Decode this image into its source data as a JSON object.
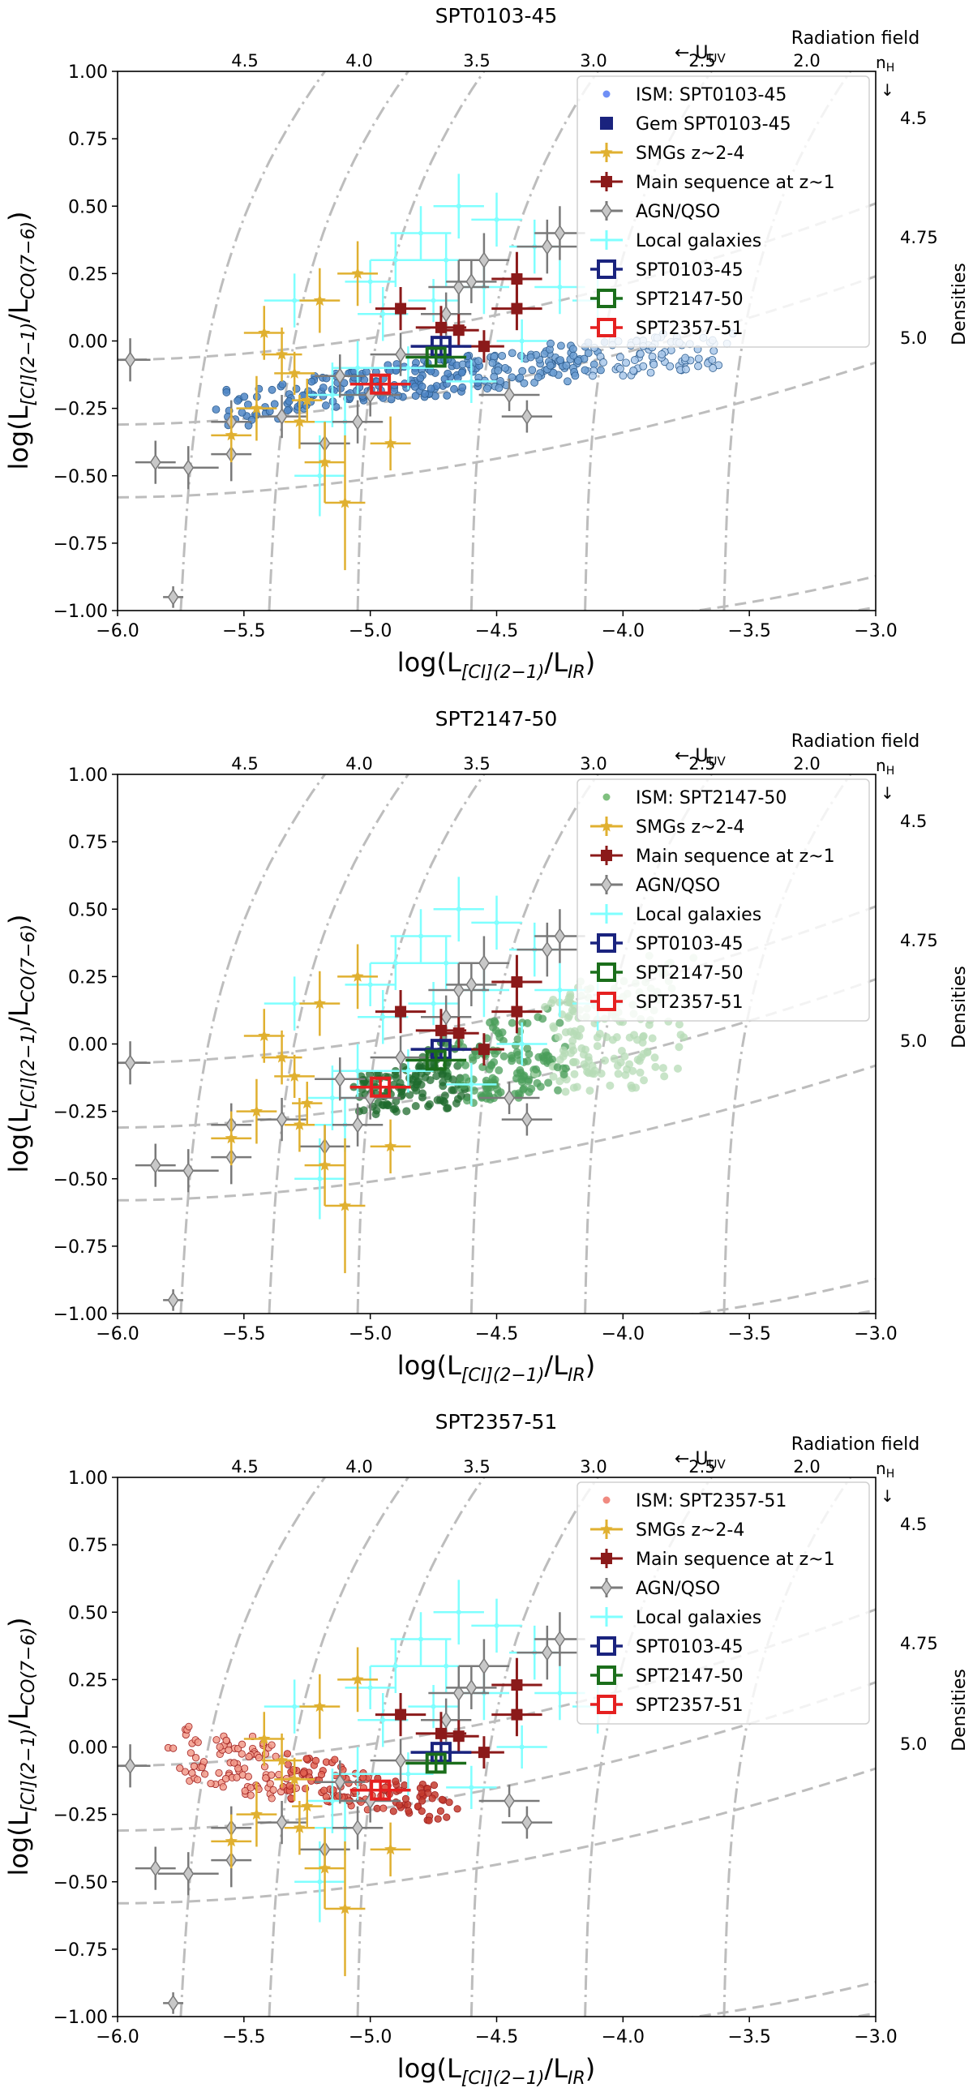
{
  "figure": {
    "right_label_top": "Radiation field",
    "right_label_side": "Densities",
    "uv_label": "← U",
    "uv_sub": "UV",
    "nh_label": "n",
    "nh_sub": "H",
    "nh_arrow": "↓",
    "xlabel_main": "log(L",
    "xlabel_sub": "[CI](2−1)",
    "xlabel_mid": "/L",
    "xlabel_sub2": "IR",
    "xlabel_end": ")",
    "ylabel_main": "log(L",
    "ylabel_sub": "[CI](2−1)",
    "ylabel_mid": "/L",
    "ylabel_sub2": "CO(7−6)",
    "ylabel_end": ")",
    "colors": {
      "smg": "#e0b030",
      "ms": "#8b1a1a",
      "agn": "#8c8c8c",
      "local": "#7fffff",
      "spt0103": "#1a237e",
      "spt2147": "#1b6e1b",
      "spt2357": "#e52020",
      "ism_blue": "#4f86c6",
      "ism_green": "#5aab60",
      "ism_red": "#e06050"
    }
  },
  "chart_data": [
    {
      "type": "scatter",
      "title": "SPT0103-45",
      "xlim": [
        -6.0,
        -3.0
      ],
      "ylim": [
        -1.0,
        1.0
      ],
      "xticks": [
        "−6.0",
        "−5.5",
        "−5.0",
        "−4.5",
        "−4.0",
        "−3.5",
        "−3.0"
      ],
      "yticks": [
        "−1.00",
        "−0.75",
        "−0.50",
        "−0.25",
        "0.00",
        "0.25",
        "0.50",
        "0.75",
        "1.00"
      ],
      "top_ticks": [
        "4.5",
        "4.0",
        "3.5",
        "3.0",
        "2.5",
        "2.0"
      ],
      "density_labels": [
        "4.5",
        "4.75",
        "5.0"
      ],
      "legend": [
        "ISM: SPT0103-45",
        "Gem SPT0103-45",
        "SMGs z~2-4",
        "Main sequence at z~1",
        "AGN/QSO",
        "Local galaxies",
        "SPT0103-45",
        "SPT2147-50",
        "SPT2357-51"
      ],
      "ism_color": "blue",
      "spt_points": [
        {
          "name": "SPT0103-45",
          "x": -4.72,
          "y": -0.02
        },
        {
          "name": "SPT2147-50",
          "x": -4.74,
          "y": -0.06
        },
        {
          "name": "SPT2357-51",
          "x": -4.96,
          "y": -0.16
        }
      ]
    },
    {
      "type": "scatter",
      "title": "SPT2147-50",
      "xlim": [
        -6.0,
        -3.0
      ],
      "ylim": [
        -1.0,
        1.0
      ],
      "xticks": [
        "−6.0",
        "−5.5",
        "−5.0",
        "−4.5",
        "−4.0",
        "−3.5",
        "−3.0"
      ],
      "yticks": [
        "−1.00",
        "−0.75",
        "−0.50",
        "−0.25",
        "0.00",
        "0.25",
        "0.50",
        "0.75",
        "1.00"
      ],
      "top_ticks": [
        "4.5",
        "4.0",
        "3.5",
        "3.0",
        "2.5",
        "2.0"
      ],
      "density_labels": [
        "4.5",
        "4.75",
        "5.0"
      ],
      "legend": [
        "ISM: SPT2147-50",
        "SMGs z~2-4",
        "Main sequence at z~1",
        "AGN/QSO",
        "Local galaxies",
        "SPT0103-45",
        "SPT2147-50",
        "SPT2357-51"
      ],
      "ism_color": "green",
      "spt_points": [
        {
          "name": "SPT0103-45",
          "x": -4.72,
          "y": -0.02
        },
        {
          "name": "SPT2147-50",
          "x": -4.74,
          "y": -0.06
        },
        {
          "name": "SPT2357-51",
          "x": -4.96,
          "y": -0.16
        }
      ]
    },
    {
      "type": "scatter",
      "title": "SPT2357-51",
      "xlim": [
        -6.0,
        -3.0
      ],
      "ylim": [
        -1.0,
        1.0
      ],
      "xticks": [
        "−6.0",
        "−5.5",
        "−5.0",
        "−4.5",
        "−4.0",
        "−3.5",
        "−3.0"
      ],
      "yticks": [
        "−1.00",
        "−0.75",
        "−0.50",
        "−0.25",
        "0.00",
        "0.25",
        "0.50",
        "0.75",
        "1.00"
      ],
      "top_ticks": [
        "4.5",
        "4.0",
        "3.5",
        "3.0",
        "2.5",
        "2.0"
      ],
      "density_labels": [
        "4.5",
        "4.75",
        "5.0"
      ],
      "legend": [
        "ISM: SPT2357-51",
        "SMGs z~2-4",
        "Main sequence at z~1",
        "AGN/QSO",
        "Local galaxies",
        "SPT0103-45",
        "SPT2147-50",
        "SPT2357-51"
      ],
      "ism_color": "red",
      "spt_points": [
        {
          "name": "SPT0103-45",
          "x": -4.72,
          "y": -0.02
        },
        {
          "name": "SPT2147-50",
          "x": -4.74,
          "y": -0.06
        },
        {
          "name": "SPT2357-51",
          "x": -4.96,
          "y": -0.16
        }
      ]
    }
  ],
  "shared_samples": {
    "smg": [
      [
        -5.55,
        -0.35,
        0.08,
        0.1
      ],
      [
        -5.45,
        -0.25,
        0.08,
        0.12
      ],
      [
        -5.42,
        0.03,
        0.08,
        0.1
      ],
      [
        -5.3,
        -0.12,
        0.08,
        0.08
      ],
      [
        -5.2,
        0.15,
        0.08,
        0.12
      ],
      [
        -5.18,
        -0.45,
        0.08,
        0.15
      ],
      [
        -5.1,
        -0.6,
        0.08,
        0.25
      ],
      [
        -5.05,
        0.25,
        0.08,
        0.12
      ],
      [
        -4.92,
        -0.38,
        0.08,
        0.1
      ],
      [
        -5.28,
        -0.3,
        0.06,
        0.1
      ],
      [
        -5.35,
        -0.05,
        0.08,
        0.1
      ],
      [
        -5.25,
        -0.22,
        0.06,
        0.08
      ]
    ],
    "ms": [
      [
        -4.88,
        0.12,
        0.1,
        0.08
      ],
      [
        -4.72,
        0.05,
        0.1,
        0.08
      ],
      [
        -4.42,
        0.23,
        0.1,
        0.1
      ],
      [
        -4.42,
        0.12,
        0.1,
        0.08
      ],
      [
        -4.65,
        0.04,
        0.08,
        0.06
      ],
      [
        -4.55,
        -0.02,
        0.08,
        0.06
      ]
    ],
    "agn": [
      [
        -5.95,
        -0.07,
        0.08,
        0.08
      ],
      [
        -5.85,
        -0.45,
        0.08,
        0.08
      ],
      [
        -5.72,
        -0.47,
        0.12,
        0.08
      ],
      [
        -5.55,
        -0.42,
        0.08,
        0.1
      ],
      [
        -5.55,
        -0.3,
        0.08,
        0.08
      ],
      [
        -5.35,
        -0.28,
        0.1,
        0.08
      ],
      [
        -5.18,
        -0.38,
        0.1,
        0.08
      ],
      [
        -5.12,
        -0.13,
        0.1,
        0.08
      ],
      [
        -5.0,
        -0.2,
        0.12,
        0.08
      ],
      [
        -4.88,
        -0.05,
        0.12,
        0.08
      ],
      [
        -4.65,
        0.2,
        0.12,
        0.1
      ],
      [
        -4.55,
        0.3,
        0.1,
        0.1
      ],
      [
        -4.3,
        0.35,
        0.12,
        0.1
      ],
      [
        -4.25,
        0.4,
        0.1,
        0.1
      ],
      [
        -4.45,
        -0.2,
        0.12,
        0.06
      ],
      [
        -4.38,
        -0.28,
        0.1,
        0.06
      ],
      [
        -5.78,
        -0.95,
        0.04,
        0.04
      ],
      [
        -4.7,
        0.1,
        0.1,
        0.08
      ],
      [
        -4.6,
        0.22,
        0.1,
        0.08
      ],
      [
        -5.05,
        -0.3,
        0.1,
        0.08
      ]
    ],
    "local": [
      [
        -5.3,
        0.15,
        0.12,
        0.1
      ],
      [
        -5.1,
        -0.3,
        0.12,
        0.1
      ],
      [
        -5.15,
        -0.2,
        0.1,
        0.12
      ],
      [
        -5.2,
        -0.5,
        0.1,
        0.15
      ],
      [
        -4.9,
        0.3,
        0.1,
        0.1
      ],
      [
        -4.8,
        0.4,
        0.12,
        0.1
      ],
      [
        -4.65,
        0.5,
        0.1,
        0.12
      ],
      [
        -4.55,
        0.2,
        0.1,
        0.1
      ],
      [
        -4.7,
        0.3,
        0.12,
        0.1
      ],
      [
        -4.35,
        0.35,
        0.1,
        0.1
      ],
      [
        -4.25,
        0.2,
        0.1,
        0.1
      ],
      [
        -4.1,
        0.15,
        0.1,
        0.1
      ],
      [
        -4.5,
        0.45,
        0.1,
        0.1
      ],
      [
        -4.95,
        0.1,
        0.1,
        0.1
      ],
      [
        -5.0,
        0.22,
        0.1,
        0.08
      ],
      [
        -4.6,
        -0.15,
        0.1,
        0.08
      ],
      [
        -4.85,
        -0.1,
        0.1,
        0.08
      ],
      [
        -4.4,
        0.0,
        0.1,
        0.08
      ],
      [
        -5.05,
        -0.1,
        0.1,
        0.1
      ],
      [
        -4.75,
        0.15,
        0.1,
        0.08
      ]
    ]
  }
}
